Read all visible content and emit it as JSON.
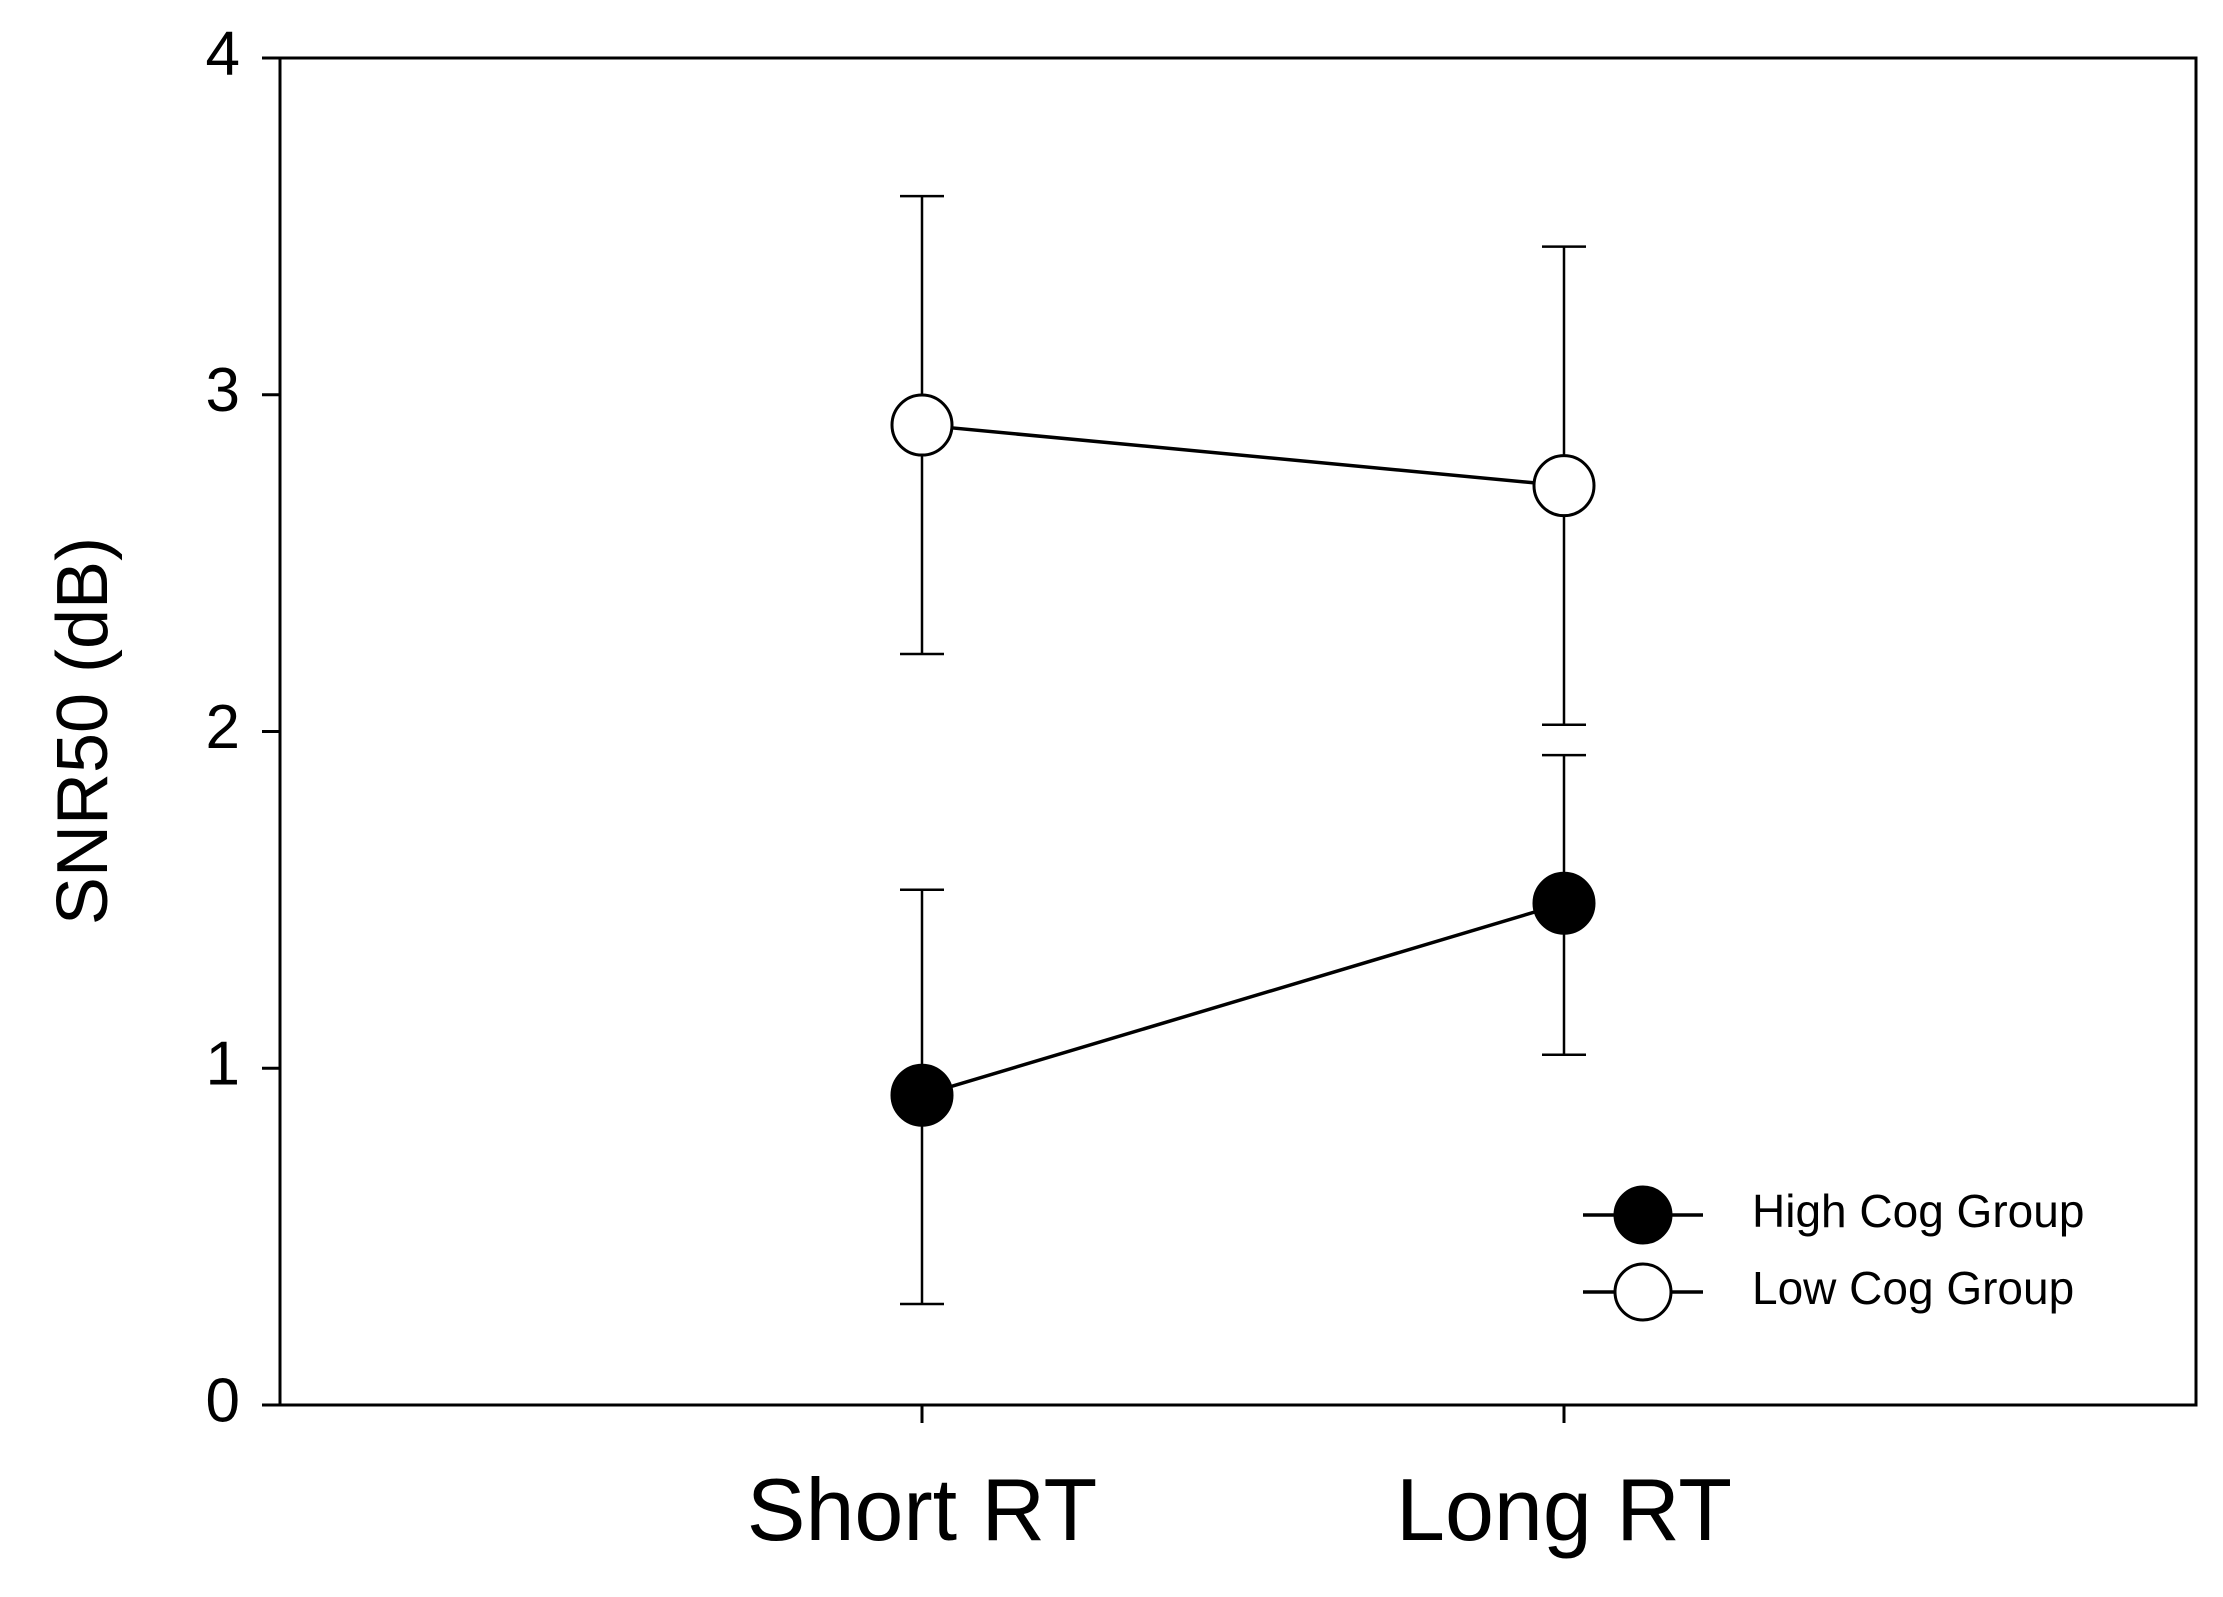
{
  "chart_data": {
    "type": "line",
    "categories": [
      "Short RT",
      "Long RT"
    ],
    "ylabel": "SNR50 (dB)",
    "xlabel": "",
    "ylim": [
      0,
      4
    ],
    "yticks": [
      0,
      1,
      2,
      3,
      4
    ],
    "grid": false,
    "legend_position": "bottom-right",
    "series": [
      {
        "name": "High Cog Group",
        "marker": "filled-circle",
        "color": "#000000",
        "values": [
          0.92,
          1.49
        ],
        "error_low": [
          0.3,
          1.04
        ],
        "error_high": [
          1.53,
          1.93
        ]
      },
      {
        "name": "Low Cog Group",
        "marker": "open-circle",
        "color": "#000000",
        "values": [
          2.91,
          2.73
        ],
        "error_low": [
          2.23,
          2.02
        ],
        "error_high": [
          3.59,
          3.44
        ]
      }
    ]
  }
}
